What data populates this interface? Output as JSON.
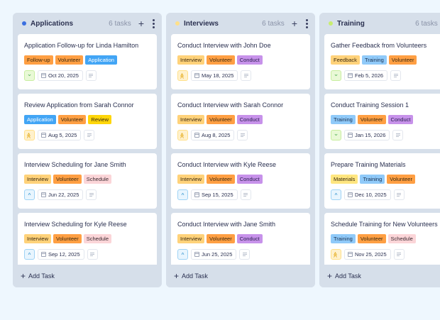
{
  "columns": [
    {
      "title": "Applications",
      "count": "6 tasks",
      "dot_color": "#3b6fe0",
      "add_label": "Add Task",
      "cards": [
        {
          "title": "Application Follow-up for Linda Hamilton",
          "tags": [
            {
              "label": "Follow-up",
              "bg": "#ff9f43",
              "fg": "#3a2a10"
            },
            {
              "label": "Volunteer",
              "bg": "#ff9f43",
              "fg": "#3a2a10"
            },
            {
              "label": "Application",
              "bg": "#42a5f5",
              "fg": "#ffffff"
            }
          ],
          "priority": "low",
          "priority_icon": "chevron-down",
          "date": "Oct 20, 2025"
        },
        {
          "title": "Review Application from Sarah Connor",
          "tags": [
            {
              "label": "Application",
              "bg": "#42a5f5",
              "fg": "#ffffff"
            },
            {
              "label": "Volunteer",
              "bg": "#ff9f43",
              "fg": "#3a2a10"
            },
            {
              "label": "Review",
              "bg": "#ffd60a",
              "fg": "#3a2a10"
            }
          ],
          "priority": "high",
          "priority_icon": "chevrons-up",
          "date": "Aug 5, 2025"
        },
        {
          "title": "Interview Scheduling for Jane Smith",
          "tags": [
            {
              "label": "Interview",
              "bg": "#ffd27a",
              "fg": "#3a2a10"
            },
            {
              "label": "Volunteer",
              "bg": "#ff9f43",
              "fg": "#3a2a10"
            },
            {
              "label": "Schedule",
              "bg": "#fbd5d8",
              "fg": "#3a2a30"
            }
          ],
          "priority": "medium",
          "priority_icon": "chevron-up",
          "date": "Jun 22, 2025"
        },
        {
          "title": "Interview Scheduling for Kyle Reese",
          "tags": [
            {
              "label": "Interview",
              "bg": "#ffd27a",
              "fg": "#3a2a10"
            },
            {
              "label": "Volunteer",
              "bg": "#ff9f43",
              "fg": "#3a2a10"
            },
            {
              "label": "Schedule",
              "bg": "#fbd5d8",
              "fg": "#3a2a30"
            }
          ],
          "priority": "medium",
          "priority_icon": "chevron-up",
          "date": "Sep 12, 2025"
        }
      ]
    },
    {
      "title": "Interviews",
      "count": "6 tasks",
      "dot_color": "#ffe08a",
      "add_label": "Add Task",
      "cards": [
        {
          "title": "Conduct Interview with John Doe",
          "tags": [
            {
              "label": "Interview",
              "bg": "#ffd27a",
              "fg": "#3a2a10"
            },
            {
              "label": "Volunteer",
              "bg": "#ff9f43",
              "fg": "#3a2a10"
            },
            {
              "label": "Conduct",
              "bg": "#c792ea",
              "fg": "#2a2050"
            }
          ],
          "priority": "high",
          "priority_icon": "chevrons-up",
          "date": "May 18, 2025"
        },
        {
          "title": "Conduct Interview with Sarah Connor",
          "tags": [
            {
              "label": "Interview",
              "bg": "#ffd27a",
              "fg": "#3a2a10"
            },
            {
              "label": "Volunteer",
              "bg": "#ff9f43",
              "fg": "#3a2a10"
            },
            {
              "label": "Conduct",
              "bg": "#c792ea",
              "fg": "#2a2050"
            }
          ],
          "priority": "high",
          "priority_icon": "chevrons-up",
          "date": "Aug 8, 2025"
        },
        {
          "title": "Conduct Interview with Kyle Reese",
          "tags": [
            {
              "label": "Interview",
              "bg": "#ffd27a",
              "fg": "#3a2a10"
            },
            {
              "label": "Volunteer",
              "bg": "#ff9f43",
              "fg": "#3a2a10"
            },
            {
              "label": "Conduct",
              "bg": "#c792ea",
              "fg": "#2a2050"
            }
          ],
          "priority": "medium",
          "priority_icon": "chevron-up",
          "date": "Sep 15, 2025"
        },
        {
          "title": "Conduct Interview with Jane Smith",
          "tags": [
            {
              "label": "Interview",
              "bg": "#ffd27a",
              "fg": "#3a2a10"
            },
            {
              "label": "Volunteer",
              "bg": "#ff9f43",
              "fg": "#3a2a10"
            },
            {
              "label": "Conduct",
              "bg": "#c792ea",
              "fg": "#2a2050"
            }
          ],
          "priority": "medium",
          "priority_icon": "chevron-up",
          "date": "Jun 25, 2025"
        }
      ]
    },
    {
      "title": "Training",
      "count": "6 tasks",
      "dot_color": "#c8ee6f",
      "add_label": "Add Task",
      "cards": [
        {
          "title": "Gather Feedback from Volunteers",
          "tags": [
            {
              "label": "Feedback",
              "bg": "#ffd27a",
              "fg": "#3a2a10"
            },
            {
              "label": "Training",
              "bg": "#90caf9",
              "fg": "#1a3050"
            },
            {
              "label": "Volunteer",
              "bg": "#ff9f43",
              "fg": "#3a2a10"
            }
          ],
          "priority": "low",
          "priority_icon": "chevron-down",
          "date": "Feb 5, 2026"
        },
        {
          "title": "Conduct Training Session 1",
          "tags": [
            {
              "label": "Training",
              "bg": "#90caf9",
              "fg": "#1a3050"
            },
            {
              "label": "Volunteer",
              "bg": "#ff9f43",
              "fg": "#3a2a10"
            },
            {
              "label": "Conduct",
              "bg": "#c792ea",
              "fg": "#2a2050"
            }
          ],
          "priority": "low",
          "priority_icon": "chevron-down",
          "date": "Jan 15, 2026"
        },
        {
          "title": "Prepare Training Materials",
          "tags": [
            {
              "label": "Materials",
              "bg": "#ffe680",
              "fg": "#3a2a10"
            },
            {
              "label": "Training",
              "bg": "#90caf9",
              "fg": "#1a3050"
            },
            {
              "label": "Volunteer",
              "bg": "#ff9f43",
              "fg": "#3a2a10"
            }
          ],
          "priority": "medium",
          "priority_icon": "chevron-up",
          "date": "Dec 10, 2025"
        },
        {
          "title": "Schedule Training for New Volunteers",
          "tags": [
            {
              "label": "Training",
              "bg": "#90caf9",
              "fg": "#1a3050"
            },
            {
              "label": "Volunteer",
              "bg": "#ff9f43",
              "fg": "#3a2a10"
            },
            {
              "label": "Schedule",
              "bg": "#fbd5d8",
              "fg": "#3a2a30"
            }
          ],
          "priority": "high",
          "priority_icon": "chevrons-up",
          "date": "Nov 25, 2025"
        }
      ]
    }
  ],
  "icons": {
    "plus": "+",
    "chevron-down": "⌄",
    "chevron-up": "^",
    "chevrons-up": "≫"
  }
}
